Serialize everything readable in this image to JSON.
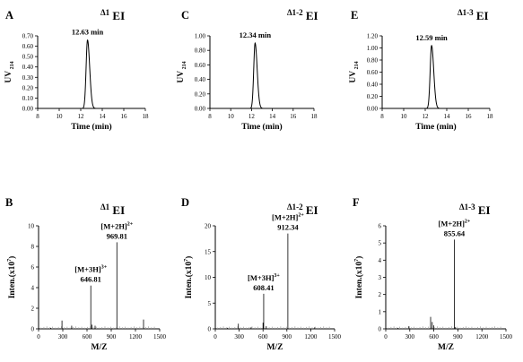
{
  "panels": [
    {
      "letter": "A",
      "title_main": "Δ1",
      "title_tag": "EI",
      "type": "uv",
      "xlabel": "Time (min)",
      "ylabel": "UV",
      "ylabel_sub": "214",
      "xlim": [
        8,
        18
      ],
      "xticks": [
        "8",
        "10",
        "12",
        "14",
        "16",
        "18"
      ],
      "ylim": [
        0,
        0.7
      ],
      "yticks": [
        "0.00",
        "0.10",
        "0.20",
        "0.30",
        "0.40",
        "0.50",
        "0.60",
        "0.70"
      ],
      "peak_label": "12.63 min"
    },
    {
      "letter": "C",
      "title_main": "Δ1-2",
      "title_tag": "EI",
      "type": "uv",
      "xlabel": "Time (min)",
      "ylabel": "UV",
      "ylabel_sub": "214",
      "xlim": [
        8,
        18
      ],
      "xticks": [
        "8",
        "10",
        "12",
        "14",
        "16",
        "18"
      ],
      "ylim": [
        0,
        1.0
      ],
      "yticks": [
        "0.00",
        "0.20",
        "0.40",
        "0.60",
        "0.80",
        "1.00"
      ],
      "peak_label": "12.34 min"
    },
    {
      "letter": "E",
      "title_main": "Δ1-3",
      "title_tag": "EI",
      "type": "uv",
      "xlabel": "Time (min)",
      "ylabel": "UV",
      "ylabel_sub": "214",
      "xlim": [
        8,
        18
      ],
      "xticks": [
        "8",
        "10",
        "12",
        "14",
        "16",
        "18"
      ],
      "ylim": [
        0,
        1.2
      ],
      "yticks": [
        "0.00",
        "0.20",
        "0.40",
        "0.60",
        "0.80",
        "1.00",
        "1.20"
      ],
      "peak_label": "12.59 min"
    },
    {
      "letter": "B",
      "title_main": "Δ1",
      "title_tag": "EI",
      "type": "ms",
      "xlabel": "M/Z",
      "ylabel": "Inten.(x10",
      "ylabel_sup": "7",
      "ylabel_end": ")",
      "xlim": [
        0,
        1500
      ],
      "xticks": [
        "0",
        "300",
        "600",
        "900",
        "1200",
        "1500"
      ],
      "ylim": [
        0,
        10
      ],
      "yticks": [
        "0",
        "2",
        "4",
        "6",
        "8",
        "10"
      ],
      "annotations": [
        {
          "ion": "[M+2H]",
          "charge": "2+",
          "mz": "969.81"
        },
        {
          "ion": "[M+3H]",
          "charge": "3+",
          "mz": "646.81"
        }
      ]
    },
    {
      "letter": "D",
      "title_main": "Δ1-2",
      "title_tag": "EI",
      "type": "ms",
      "xlabel": "M/Z",
      "ylabel": "Inten.(x10",
      "ylabel_sup": "7",
      "ylabel_end": ")",
      "xlim": [
        0,
        1500
      ],
      "xticks": [
        "0",
        "300",
        "600",
        "900",
        "1200",
        "1500"
      ],
      "ylim": [
        0,
        20
      ],
      "yticks": [
        "0",
        "5",
        "10",
        "15",
        "20"
      ],
      "annotations": [
        {
          "ion": "[M+2H]",
          "charge": "2+",
          "mz": "912.34"
        },
        {
          "ion": "[M+3H]",
          "charge": "3+",
          "mz": "608.41"
        }
      ]
    },
    {
      "letter": "F",
      "title_main": "Δ1-3",
      "title_tag": "EI",
      "type": "ms",
      "xlabel": "M/Z",
      "ylabel": "Inten.(x10",
      "ylabel_sup": "7",
      "ylabel_end": ")",
      "xlim": [
        0,
        1500
      ],
      "xticks": [
        "0",
        "300",
        "600",
        "900",
        "1200",
        "1500"
      ],
      "ylim": [
        0,
        6
      ],
      "yticks": [
        "0",
        "1",
        "2",
        "3",
        "4",
        "5",
        "6"
      ],
      "annotations": [
        {
          "ion": "[M+2H]",
          "charge": "2+",
          "mz": "855.64"
        }
      ]
    }
  ],
  "chart_data": [
    {
      "panel": "A",
      "type": "line",
      "title": "Δ1 EI",
      "xlabel": "Time (min)",
      "ylabel": "UV 214",
      "xlim": [
        8,
        18
      ],
      "ylim": [
        0,
        0.7
      ],
      "series": [
        {
          "peak_rt_min": 12.63,
          "peak_height": 0.66,
          "baseline": 0.0
        }
      ]
    },
    {
      "panel": "C",
      "type": "line",
      "title": "Δ1-2 EI",
      "xlabel": "Time (min)",
      "ylabel": "UV 214",
      "xlim": [
        8,
        18
      ],
      "ylim": [
        0,
        1.0
      ],
      "series": [
        {
          "peak_rt_min": 12.34,
          "peak_height": 0.9,
          "baseline": 0.0
        }
      ]
    },
    {
      "panel": "E",
      "type": "line",
      "title": "Δ1-3 EI",
      "xlabel": "Time (min)",
      "ylabel": "UV 214",
      "xlim": [
        8,
        18
      ],
      "ylim": [
        0,
        1.2
      ],
      "series": [
        {
          "peak_rt_min": 12.59,
          "peak_height": 1.04,
          "baseline": 0.0
        }
      ]
    },
    {
      "panel": "B",
      "type": "bar",
      "title": "Δ1 EI",
      "xlabel": "M/Z",
      "ylabel": "Inten.(x10^7)",
      "xlim": [
        0,
        1500
      ],
      "ylim": [
        0,
        10
      ],
      "x": [
        150,
        290,
        410,
        646.81,
        660,
        700,
        969.81,
        1300
      ],
      "values": [
        0.1,
        0.8,
        0.3,
        4.2,
        0.4,
        0.3,
        8.4,
        0.9
      ]
    },
    {
      "panel": "D",
      "type": "bar",
      "title": "Δ1-2 EI",
      "xlabel": "M/Z",
      "ylabel": "Inten.(x10^7)",
      "xlim": [
        0,
        1500
      ],
      "ylim": [
        0,
        20
      ],
      "x": [
        150,
        290,
        450,
        600,
        608.41,
        640,
        912.34,
        1250
      ],
      "values": [
        0.2,
        1.0,
        0.3,
        1.2,
        6.8,
        0.5,
        18.5,
        0.3
      ]
    },
    {
      "panel": "F",
      "type": "bar",
      "title": "Δ1-3 EI",
      "xlabel": "M/Z",
      "ylabel": "Inten.(x10^7)",
      "xlim": [
        0,
        1500
      ],
      "ylim": [
        0,
        6
      ],
      "x": [
        150,
        290,
        560,
        580,
        600,
        855.64,
        870
      ],
      "values": [
        0.05,
        0.15,
        0.7,
        0.4,
        0.2,
        5.2,
        0.1
      ]
    }
  ]
}
